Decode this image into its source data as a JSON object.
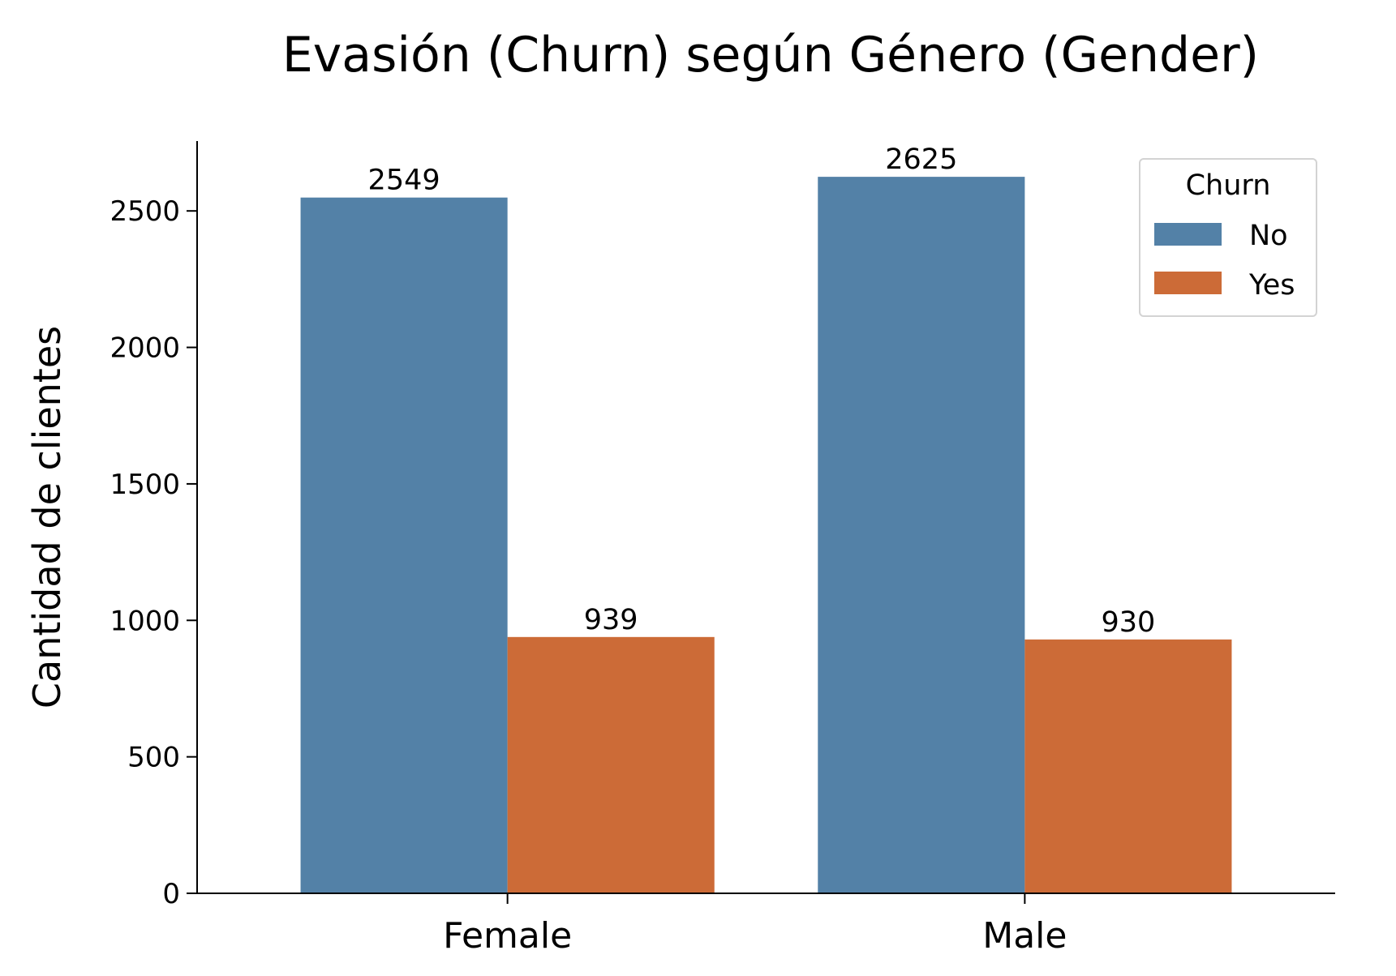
{
  "chart_data": {
    "type": "bar",
    "title": "Evasión (Churn) según Género (Gender)",
    "xlabel": "",
    "ylabel": "Cantidad de clientes",
    "categories": [
      "Female",
      "Male"
    ],
    "series": [
      {
        "name": "No",
        "values": [
          2549,
          2625
        ],
        "color": "#5381a7"
      },
      {
        "name": "Yes",
        "values": [
          939,
          930
        ],
        "color": "#cc6b37"
      }
    ],
    "data_labels": [
      [
        "2549",
        "2625"
      ],
      [
        "939",
        "930"
      ]
    ],
    "yticks": [
      0,
      500,
      1000,
      1500,
      2000,
      2500
    ],
    "ylim": [
      0,
      2756
    ],
    "grid": false,
    "legend": {
      "title": "Churn",
      "position": "top-right"
    }
  }
}
